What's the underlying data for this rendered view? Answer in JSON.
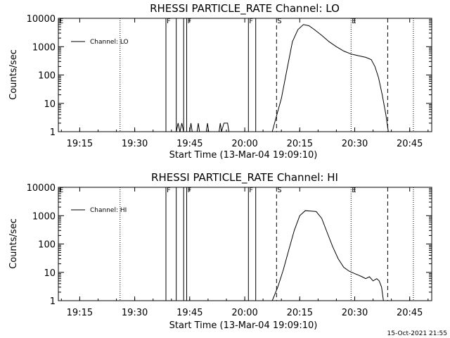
{
  "footer_date": "15-Oct-2021 21:55",
  "colors": {
    "background": "#ffffff",
    "foreground": "#000000"
  },
  "chart_data": [
    {
      "type": "line",
      "title": "RHESSI PARTICLE_RATE Channel: LO",
      "xlabel": "Start Time (13-Mar-04 19:09:10)",
      "ylabel": "Counts/sec",
      "legend": {
        "label": "Channel: LO",
        "placement": "top-left"
      },
      "yscale": "log",
      "ylim": [
        1,
        10000
      ],
      "xlim": [
        "19:09:10",
        "20:51:00"
      ],
      "x_ticks": [
        "19:15",
        "19:30",
        "19:45",
        "20:00",
        "20:15",
        "20:30",
        "20:45"
      ],
      "y_ticks": [
        "1",
        "10",
        "100",
        "1000",
        "10000"
      ],
      "marker_lines": [
        {
          "time": "19:26:00",
          "style": "dotted",
          "label": ""
        },
        {
          "time": "19:38:30",
          "style": "solid",
          "label": "F"
        },
        {
          "time": "19:41:20",
          "style": "solid",
          "label": ""
        },
        {
          "time": "19:43:20",
          "style": "solid",
          "label": ""
        },
        {
          "time": "19:44:10",
          "style": "solid",
          "label": "F"
        },
        {
          "time": "20:01:00",
          "style": "solid",
          "label": "F"
        },
        {
          "time": "20:03:00",
          "style": "solid",
          "label": ""
        },
        {
          "time": "20:08:40",
          "style": "dashed",
          "label": "S"
        },
        {
          "time": "20:29:00",
          "style": "dotted",
          "label": "E"
        },
        {
          "time": "20:39:00",
          "style": "dashed",
          "label": ""
        },
        {
          "time": "20:46:00",
          "style": "dotted",
          "label": ""
        }
      ],
      "series": [
        {
          "name": "Channel: LO",
          "x": [
            "19:41:20",
            "19:41:50",
            "19:42:20",
            "19:42:50",
            "19:43:20",
            "19:45:00",
            "19:45:20",
            "19:45:40",
            "19:47:00",
            "19:47:20",
            "19:47:40",
            "19:49:30",
            "19:49:50",
            "19:50:10",
            "19:53:00",
            "19:53:20",
            "19:53:40",
            "19:54:20",
            "19:55:00",
            "19:55:20",
            "19:55:40",
            "20:03:00",
            "20:07:30",
            "20:08:30",
            "20:10:00",
            "20:11:30",
            "20:13:00",
            "20:14:30",
            "20:16:00",
            "20:17:30",
            "20:19:00",
            "20:21:00",
            "20:23:00",
            "20:25:00",
            "20:27:00",
            "20:29:00",
            "20:31:00",
            "20:33:00",
            "20:34:30",
            "20:35:30",
            "20:36:30",
            "20:37:30",
            "20:38:30",
            "20:39:10"
          ],
          "y": [
            1,
            2,
            1,
            2,
            1,
            1,
            2,
            1,
            1,
            2,
            1,
            1,
            2,
            1,
            1,
            2,
            1,
            2,
            2,
            2,
            1,
            1,
            1,
            3,
            15,
            150,
            1500,
            4000,
            6000,
            5500,
            4000,
            2500,
            1500,
            1000,
            700,
            550,
            480,
            420,
            350,
            200,
            80,
            20,
            4,
            1
          ]
        }
      ]
    },
    {
      "type": "line",
      "title": "RHESSI PARTICLE_RATE Channel: HI",
      "xlabel": "Start Time (13-Mar-04 19:09:10)",
      "ylabel": "Counts/sec",
      "legend": {
        "label": "Channel: HI",
        "placement": "top-left"
      },
      "yscale": "log",
      "ylim": [
        1,
        10000
      ],
      "xlim": [
        "19:09:10",
        "20:51:00"
      ],
      "x_ticks": [
        "19:15",
        "19:30",
        "19:45",
        "20:00",
        "20:15",
        "20:30",
        "20:45"
      ],
      "y_ticks": [
        "1",
        "10",
        "100",
        "1000",
        "10000"
      ],
      "marker_lines": [
        {
          "time": "19:26:00",
          "style": "dotted",
          "label": ""
        },
        {
          "time": "19:38:30",
          "style": "solid",
          "label": "F"
        },
        {
          "time": "19:41:20",
          "style": "solid",
          "label": ""
        },
        {
          "time": "19:43:20",
          "style": "solid",
          "label": ""
        },
        {
          "time": "19:44:10",
          "style": "solid",
          "label": "F"
        },
        {
          "time": "20:01:00",
          "style": "solid",
          "label": "F"
        },
        {
          "time": "20:03:00",
          "style": "solid",
          "label": ""
        },
        {
          "time": "20:08:40",
          "style": "dashed",
          "label": "S"
        },
        {
          "time": "20:29:00",
          "style": "dotted",
          "label": "E"
        },
        {
          "time": "20:39:00",
          "style": "dashed",
          "label": ""
        },
        {
          "time": "20:46:00",
          "style": "dotted",
          "label": ""
        }
      ],
      "series": [
        {
          "name": "Channel: HI",
          "x": [
            "20:07:30",
            "20:09:00",
            "20:10:30",
            "20:12:00",
            "20:13:30",
            "20:15:00",
            "20:16:30",
            "20:18:00",
            "20:19:30",
            "20:21:00",
            "20:22:30",
            "20:24:00",
            "20:25:30",
            "20:27:00",
            "20:28:30",
            "20:30:00",
            "20:31:00",
            "20:32:00",
            "20:33:00",
            "20:34:00",
            "20:35:00",
            "20:36:00",
            "20:36:40",
            "20:37:20",
            "20:37:50"
          ],
          "y": [
            1,
            3,
            12,
            60,
            300,
            1000,
            1500,
            1450,
            1400,
            800,
            250,
            80,
            30,
            15,
            11,
            9,
            8,
            7,
            6,
            7,
            5,
            6,
            5,
            3,
            1
          ]
        }
      ]
    }
  ]
}
